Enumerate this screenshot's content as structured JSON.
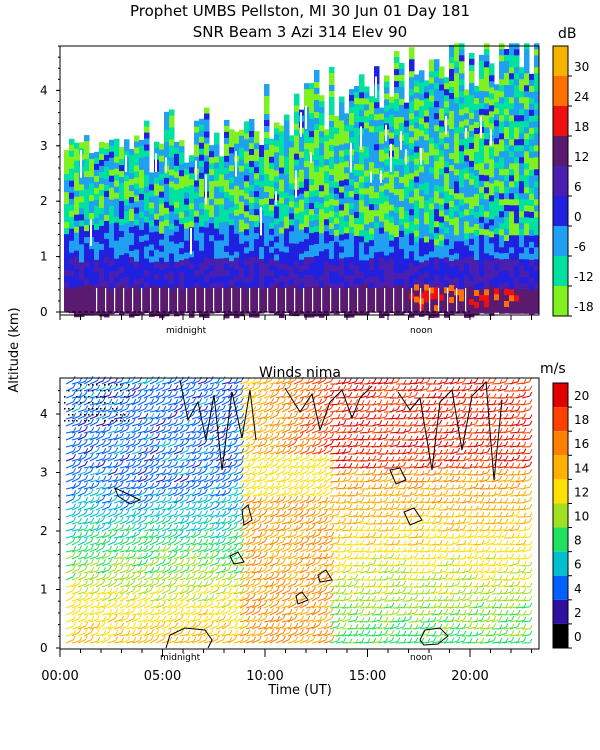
{
  "title_line1": "Prophet  UMBS Pellston, MI  30 Jun 01 Day 181",
  "title_line2": "SNR Beam 3 Azi 314 Elev 90",
  "y_axis_label": "Altitude (km)",
  "x_axis_label": "Time (UT)",
  "time_markers": {
    "midnight": "midnight",
    "noon": "noon"
  },
  "chart_data": [
    {
      "type": "heatmap",
      "title": "SNR Beam 3 Azi 314 Elev 90",
      "ylabel": "Altitude (km)",
      "ylim": [
        0,
        4.9
      ],
      "y_ticks": [
        "0",
        "1",
        "2",
        "3",
        "4"
      ],
      "xlim_hours": [
        0,
        24
      ],
      "colorbar": {
        "unit": "dB",
        "ticks": [
          "30",
          "24",
          "18",
          "12",
          "6",
          "0",
          "-6",
          "-12",
          "-18"
        ],
        "bins": [
          {
            "min": 30,
            "max": 36,
            "color": "#f5b400"
          },
          {
            "min": 24,
            "max": 30,
            "color": "#ff7000"
          },
          {
            "min": 18,
            "max": 24,
            "color": "#ee1010"
          },
          {
            "min": 12,
            "max": 18,
            "color": "#5a1a70"
          },
          {
            "min": 6,
            "max": 12,
            "color": "#4a1fb0"
          },
          {
            "min": 0,
            "max": 6,
            "color": "#2020e0"
          },
          {
            "min": -6,
            "max": 0,
            "color": "#20a0f0"
          },
          {
            "min": -12,
            "max": -6,
            "color": "#00e0a0"
          },
          {
            "min": -18,
            "max": -12,
            "color": "#80f020"
          }
        ]
      }
    },
    {
      "type": "heatmap",
      "title": "Winds nima",
      "xlabel": "Time (UT)",
      "ylabel": "Altitude (km)",
      "ylim": [
        0,
        4.6
      ],
      "y_ticks": [
        "0",
        "1",
        "2",
        "3",
        "4"
      ],
      "xlim_hours": [
        0,
        24
      ],
      "x_ticks": [
        "00:00",
        "05:00",
        "10:00",
        "15:00",
        "20:00"
      ],
      "colorbar": {
        "unit": "m/s",
        "ticks": [
          "20",
          "18",
          "16",
          "14",
          "12",
          "10",
          "8",
          "6",
          "4",
          "2",
          "0"
        ],
        "bins": [
          {
            "min": 20,
            "max": 22,
            "color": "#e00000"
          },
          {
            "min": 18,
            "max": 20,
            "color": "#ff4000"
          },
          {
            "min": 16,
            "max": 18,
            "color": "#ff8000"
          },
          {
            "min": 14,
            "max": 16,
            "color": "#ffb000"
          },
          {
            "min": 12,
            "max": 14,
            "color": "#ffe000"
          },
          {
            "min": 10,
            "max": 12,
            "color": "#a0e020"
          },
          {
            "min": 8,
            "max": 10,
            "color": "#20e060"
          },
          {
            "min": 6,
            "max": 8,
            "color": "#00c0d0"
          },
          {
            "min": 4,
            "max": 6,
            "color": "#0060ff"
          },
          {
            "min": 2,
            "max": 4,
            "color": "#3010a0"
          },
          {
            "min": 0,
            "max": 2,
            "color": "#000000"
          }
        ]
      }
    }
  ]
}
